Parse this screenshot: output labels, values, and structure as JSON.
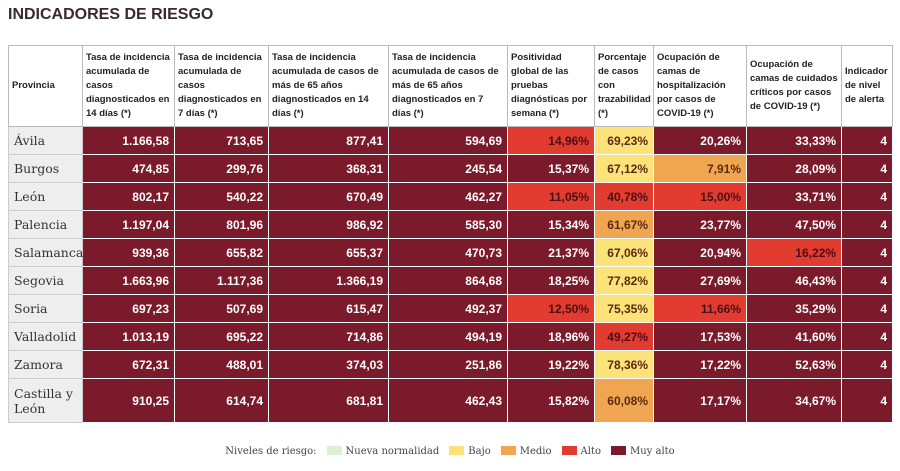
{
  "title": "INDICADORES DE RIESGO",
  "table": {
    "headers": [
      "Provincia",
      "Tasa de incidencia acumulada de casos diagnosticados en 14 días (*)",
      "Tasa de incidencia acumulada de casos diagnosticados en 7 días (*)",
      "Tasa de incidencia acumulada de casos de más de 65 años diagnosticados en 14 días (*)",
      "Tasa de incidencia acumulada de casos de más de 65 años diagnosticados en 7 días (*)",
      "Positividad global de las pruebas diagnósticas por semana (*)",
      "Porcentaje de casos con trazabilidad (*)",
      "Ocupación de camas de hospitalización por casos de COVID-19 (*)",
      "Ocupación de camas de cuidados críticos por casos de COVID-19 (*)",
      "Indicador de nivel de alerta"
    ],
    "rows": [
      {
        "cells": [
          "Ávila",
          "1.166,58",
          "713,65",
          "877,41",
          "594,69",
          "14,96%",
          "69,23%",
          "20,26%",
          "33,33%",
          "4"
        ],
        "colors": [
          "#eeeeee",
          "#7b1a2a",
          "#7b1a2a",
          "#7b1a2a",
          "#7b1a2a",
          "#e23b30",
          "#fbe37a",
          "#7b1a2a",
          "#7b1a2a",
          "#7b1a2a"
        ]
      },
      {
        "cells": [
          "Burgos",
          "474,85",
          "299,76",
          "368,31",
          "245,54",
          "15,37%",
          "67,12%",
          "7,91%",
          "28,09%",
          "4"
        ],
        "colors": [
          "#eeeeee",
          "#7b1a2a",
          "#7b1a2a",
          "#7b1a2a",
          "#7b1a2a",
          "#7b1a2a",
          "#fbe37a",
          "#f0a650",
          "#7b1a2a",
          "#7b1a2a"
        ]
      },
      {
        "cells": [
          "León",
          "802,17",
          "540,22",
          "670,49",
          "462,27",
          "11,05%",
          "40,78%",
          "15,00%",
          "33,71%",
          "4"
        ],
        "colors": [
          "#eeeeee",
          "#7b1a2a",
          "#7b1a2a",
          "#7b1a2a",
          "#7b1a2a",
          "#e23b30",
          "#e23b30",
          "#e23b30",
          "#7b1a2a",
          "#7b1a2a"
        ]
      },
      {
        "cells": [
          "Palencia",
          "1.197,04",
          "801,96",
          "986,92",
          "585,30",
          "15,34%",
          "61,67%",
          "23,77%",
          "47,50%",
          "4"
        ],
        "colors": [
          "#eeeeee",
          "#7b1a2a",
          "#7b1a2a",
          "#7b1a2a",
          "#7b1a2a",
          "#7b1a2a",
          "#f0a650",
          "#7b1a2a",
          "#7b1a2a",
          "#7b1a2a"
        ]
      },
      {
        "cells": [
          "Salamanca",
          "939,36",
          "655,82",
          "655,37",
          "470,73",
          "21,37%",
          "67,06%",
          "20,94%",
          "16,22%",
          "4"
        ],
        "colors": [
          "#eeeeee",
          "#7b1a2a",
          "#7b1a2a",
          "#7b1a2a",
          "#7b1a2a",
          "#7b1a2a",
          "#fbe37a",
          "#7b1a2a",
          "#e23b30",
          "#7b1a2a"
        ]
      },
      {
        "cells": [
          "Segovia",
          "1.663,96",
          "1.117,36",
          "1.366,19",
          "864,68",
          "18,25%",
          "77,82%",
          "27,69%",
          "46,43%",
          "4"
        ],
        "colors": [
          "#eeeeee",
          "#7b1a2a",
          "#7b1a2a",
          "#7b1a2a",
          "#7b1a2a",
          "#7b1a2a",
          "#fbe37a",
          "#7b1a2a",
          "#7b1a2a",
          "#7b1a2a"
        ]
      },
      {
        "cells": [
          "Soria",
          "697,23",
          "507,69",
          "615,47",
          "492,37",
          "12,50%",
          "75,35%",
          "11,66%",
          "35,29%",
          "4"
        ],
        "colors": [
          "#eeeeee",
          "#7b1a2a",
          "#7b1a2a",
          "#7b1a2a",
          "#7b1a2a",
          "#e23b30",
          "#fbe37a",
          "#e23b30",
          "#7b1a2a",
          "#7b1a2a"
        ]
      },
      {
        "cells": [
          "Valladolid",
          "1.013,19",
          "695,22",
          "714,86",
          "494,19",
          "18,96%",
          "49,27%",
          "17,53%",
          "41,60%",
          "4"
        ],
        "colors": [
          "#eeeeee",
          "#7b1a2a",
          "#7b1a2a",
          "#7b1a2a",
          "#7b1a2a",
          "#7b1a2a",
          "#e23b30",
          "#7b1a2a",
          "#7b1a2a",
          "#7b1a2a"
        ]
      },
      {
        "cells": [
          "Zamora",
          "672,31",
          "488,01",
          "374,03",
          "251,86",
          "19,22%",
          "78,36%",
          "17,22%",
          "52,63%",
          "4"
        ],
        "colors": [
          "#eeeeee",
          "#7b1a2a",
          "#7b1a2a",
          "#7b1a2a",
          "#7b1a2a",
          "#7b1a2a",
          "#fbe37a",
          "#7b1a2a",
          "#7b1a2a",
          "#7b1a2a"
        ]
      },
      {
        "cells": [
          "Castilla y León",
          "910,25",
          "614,74",
          "681,81",
          "462,43",
          "15,82%",
          "60,08%",
          "17,17%",
          "34,67%",
          "4"
        ],
        "colors": [
          "#eeeeee",
          "#7b1a2a",
          "#7b1a2a",
          "#7b1a2a",
          "#7b1a2a",
          "#7b1a2a",
          "#f0a650",
          "#7b1a2a",
          "#7b1a2a",
          "#7b1a2a"
        ]
      }
    ]
  },
  "legend": {
    "title": "Niveles de riesgo:",
    "items": [
      {
        "name": "Nueva normalidad",
        "color": "#dff0d0"
      },
      {
        "name": "Bajo",
        "color": "#fbe37a"
      },
      {
        "name": "Medio",
        "color": "#f0a650"
      },
      {
        "name": "Alto",
        "color": "#e23b30"
      },
      {
        "name": "Muy alto",
        "color": "#7b1a2a"
      }
    ]
  }
}
